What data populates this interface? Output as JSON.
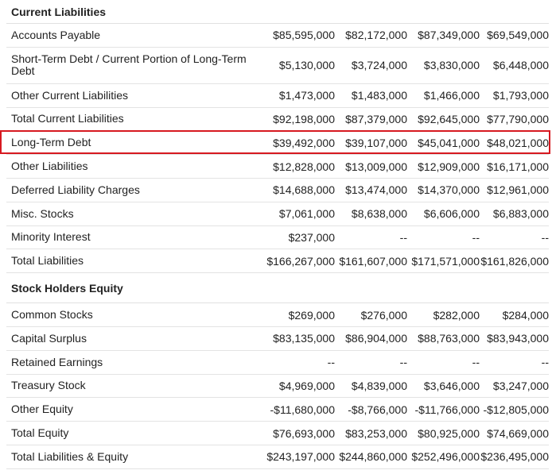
{
  "highlight_color": "#d71920",
  "sections": [
    {
      "title": "Current Liabilities",
      "rows": [
        {
          "label": "Accounts Payable",
          "values": [
            "$85,595,000",
            "$82,172,000",
            "$87,349,000",
            "$69,549,000"
          ]
        },
        {
          "label": "Short-Term Debt / Current Portion of Long-Term Debt",
          "values": [
            "$5,130,000",
            "$3,724,000",
            "$3,830,000",
            "$6,448,000"
          ]
        },
        {
          "label": "Other Current Liabilities",
          "values": [
            "$1,473,000",
            "$1,483,000",
            "$1,466,000",
            "$1,793,000"
          ]
        },
        {
          "label": "Total Current Liabilities",
          "values": [
            "$92,198,000",
            "$87,379,000",
            "$92,645,000",
            "$77,790,000"
          ]
        },
        {
          "label": "Long-Term Debt",
          "values": [
            "$39,492,000",
            "$39,107,000",
            "$45,041,000",
            "$48,021,000"
          ],
          "highlighted": true
        },
        {
          "label": "Other Liabilities",
          "values": [
            "$12,828,000",
            "$13,009,000",
            "$12,909,000",
            "$16,171,000"
          ]
        },
        {
          "label": "Deferred Liability Charges",
          "values": [
            "$14,688,000",
            "$13,474,000",
            "$14,370,000",
            "$12,961,000"
          ]
        },
        {
          "label": "Misc. Stocks",
          "values": [
            "$7,061,000",
            "$8,638,000",
            "$6,606,000",
            "$6,883,000"
          ]
        },
        {
          "label": "Minority Interest",
          "values": [
            "$237,000",
            "--",
            "--",
            "--"
          ]
        },
        {
          "label": "Total Liabilities",
          "values": [
            "$166,267,000",
            "$161,607,000",
            "$171,571,000",
            "$161,826,000"
          ]
        }
      ]
    },
    {
      "title": "Stock Holders Equity",
      "rows": [
        {
          "label": "Common Stocks",
          "values": [
            "$269,000",
            "$276,000",
            "$282,000",
            "$284,000"
          ]
        },
        {
          "label": "Capital Surplus",
          "values": [
            "$83,135,000",
            "$86,904,000",
            "$88,763,000",
            "$83,943,000"
          ]
        },
        {
          "label": "Retained Earnings",
          "values": [
            "--",
            "--",
            "--",
            "--"
          ]
        },
        {
          "label": "Treasury Stock",
          "values": [
            "$4,969,000",
            "$4,839,000",
            "$3,646,000",
            "$3,247,000"
          ]
        },
        {
          "label": "Other Equity",
          "values": [
            "-$11,680,000",
            "-$8,766,000",
            "-$11,766,000",
            "-$12,805,000"
          ]
        },
        {
          "label": "Total Equity",
          "values": [
            "$76,693,000",
            "$83,253,000",
            "$80,925,000",
            "$74,669,000"
          ]
        },
        {
          "label": "Total Liabilities & Equity",
          "values": [
            "$243,197,000",
            "$244,860,000",
            "$252,496,000",
            "$236,495,000"
          ]
        }
      ]
    }
  ]
}
